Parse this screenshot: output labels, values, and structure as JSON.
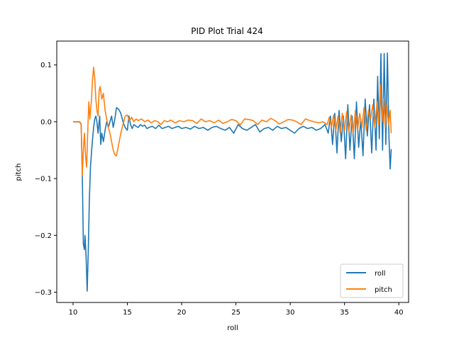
{
  "chart_data": {
    "type": "line",
    "title": "PID Plot Trial 424",
    "xlabel": "roll",
    "ylabel": "pitch",
    "xlim": [
      8.5,
      40.9
    ],
    "ylim": [
      -0.318,
      0.142
    ],
    "xticks": [
      10,
      15,
      20,
      25,
      30,
      35,
      40
    ],
    "yticks": [
      -0.3,
      -0.2,
      -0.1,
      0.0,
      0.1
    ],
    "xtick_labels": [
      "10",
      "15",
      "20",
      "25",
      "30",
      "35",
      "40"
    ],
    "ytick_labels": [
      "−0.3",
      "−0.2",
      "−0.1",
      "0.0",
      "0.1"
    ],
    "grid": false,
    "legend_position": "bottom-right",
    "series": [
      {
        "name": "roll",
        "color": "#1f77b4",
        "x": [
          10.0,
          10.3,
          10.6,
          10.75,
          10.85,
          10.95,
          11.05,
          11.1,
          11.2,
          11.3,
          11.4,
          11.5,
          11.6,
          11.75,
          11.9,
          12.0,
          12.1,
          12.2,
          12.3,
          12.45,
          12.55,
          12.65,
          12.8,
          12.95,
          13.1,
          13.25,
          13.4,
          13.55,
          13.7,
          13.85,
          14.0,
          14.2,
          14.4,
          14.6,
          14.8,
          15.0,
          15.15,
          15.3,
          15.45,
          15.6,
          15.8,
          16.0,
          16.2,
          16.4,
          16.6,
          16.8,
          17.0,
          17.3,
          17.6,
          17.9,
          18.2,
          18.5,
          18.8,
          19.1,
          19.4,
          19.7,
          20.0,
          20.4,
          20.8,
          21.2,
          21.6,
          22.0,
          22.4,
          22.8,
          23.2,
          23.6,
          24.0,
          24.4,
          24.8,
          25.2,
          25.6,
          26.0,
          26.4,
          26.8,
          27.2,
          27.6,
          28.0,
          28.4,
          28.8,
          29.2,
          29.6,
          30.0,
          30.4,
          30.8,
          31.2,
          31.6,
          32.0,
          32.4,
          32.8,
          33.2,
          33.5,
          33.7,
          33.9,
          34.1,
          34.3,
          34.5,
          34.7,
          34.9,
          35.1,
          35.3,
          35.5,
          35.7,
          35.9,
          36.1,
          36.3,
          36.5,
          36.7,
          36.9,
          37.1,
          37.3,
          37.5,
          37.7,
          37.9,
          38.05,
          38.2,
          38.35,
          38.5,
          38.65,
          38.8,
          38.95,
          39.1,
          39.2,
          39.3
        ],
        "y": [
          0.0,
          0.0,
          0.0,
          -0.004,
          -0.09,
          -0.215,
          -0.225,
          -0.2,
          -0.235,
          -0.298,
          -0.23,
          -0.14,
          -0.08,
          -0.04,
          -0.01,
          0.005,
          0.01,
          0.0,
          -0.02,
          0.01,
          -0.04,
          -0.02,
          -0.035,
          -0.015,
          0.0,
          -0.01,
          0.0,
          0.01,
          -0.01,
          0.005,
          0.025,
          0.022,
          0.015,
          0.0,
          -0.01,
          -0.015,
          0.01,
          -0.005,
          -0.012,
          -0.005,
          -0.008,
          -0.01,
          -0.005,
          -0.008,
          -0.006,
          -0.012,
          -0.01,
          -0.008,
          -0.012,
          -0.006,
          -0.012,
          -0.01,
          -0.008,
          -0.012,
          -0.01,
          -0.008,
          -0.012,
          -0.01,
          -0.013,
          -0.008,
          -0.012,
          -0.01,
          -0.015,
          -0.01,
          -0.008,
          -0.012,
          -0.015,
          -0.01,
          -0.02,
          -0.005,
          -0.012,
          -0.015,
          -0.01,
          -0.005,
          -0.018,
          -0.012,
          -0.01,
          -0.015,
          -0.008,
          -0.012,
          -0.01,
          -0.015,
          -0.02,
          -0.012,
          -0.008,
          -0.012,
          -0.01,
          -0.015,
          -0.012,
          -0.005,
          -0.02,
          0.01,
          -0.04,
          0.015,
          -0.055,
          0.02,
          -0.035,
          0.01,
          -0.065,
          0.03,
          -0.05,
          0.01,
          -0.065,
          0.035,
          -0.045,
          0.005,
          -0.06,
          0.04,
          -0.025,
          0.03,
          -0.055,
          0.04,
          -0.05,
          0.08,
          -0.03,
          0.12,
          -0.05,
          0.12,
          -0.04,
          0.121,
          -0.03,
          -0.083,
          -0.048
        ]
      },
      {
        "name": "pitch",
        "color": "#ff7f0e",
        "x": [
          10.0,
          10.3,
          10.6,
          10.75,
          10.85,
          10.95,
          11.05,
          11.15,
          11.25,
          11.35,
          11.45,
          11.55,
          11.7,
          11.8,
          11.9,
          12.0,
          12.1,
          12.2,
          12.3,
          12.4,
          12.5,
          12.65,
          12.8,
          12.95,
          13.1,
          13.25,
          13.4,
          13.55,
          13.7,
          13.85,
          14.0,
          14.2,
          14.4,
          14.6,
          14.8,
          15.0,
          15.2,
          15.4,
          15.6,
          15.8,
          16.0,
          16.3,
          16.6,
          16.9,
          17.2,
          17.5,
          17.8,
          18.1,
          18.4,
          18.7,
          19.0,
          19.4,
          19.8,
          20.2,
          20.6,
          21.0,
          21.4,
          21.8,
          22.2,
          22.6,
          23.0,
          23.4,
          23.8,
          24.2,
          24.6,
          25.0,
          25.4,
          25.8,
          26.2,
          26.6,
          27.0,
          27.4,
          27.8,
          28.2,
          28.6,
          29.0,
          29.4,
          29.8,
          30.2,
          30.6,
          31.0,
          31.4,
          31.8,
          32.2,
          32.6,
          33.0,
          33.4,
          33.6,
          33.8,
          34.0,
          34.2,
          34.4,
          34.6,
          34.8,
          35.0,
          35.2,
          35.4,
          35.6,
          35.8,
          36.0,
          36.2,
          36.4,
          36.6,
          36.8,
          37.0,
          37.2,
          37.4,
          37.6,
          37.8,
          38.0,
          38.15,
          38.3,
          38.45,
          38.6,
          38.75,
          38.9,
          39.05,
          39.2,
          39.3
        ],
        "y": [
          0.0,
          0.0,
          0.0,
          -0.005,
          -0.095,
          -0.05,
          -0.02,
          -0.06,
          -0.08,
          -0.02,
          0.035,
          0.005,
          0.04,
          0.075,
          0.096,
          0.075,
          0.04,
          0.02,
          0.01,
          0.055,
          0.062,
          0.04,
          0.05,
          0.02,
          0.005,
          -0.01,
          -0.02,
          -0.035,
          -0.05,
          -0.058,
          -0.06,
          -0.04,
          -0.02,
          -0.005,
          0.01,
          0.012,
          0.002,
          0.008,
          0.0,
          0.005,
          0.002,
          0.005,
          0.0,
          0.003,
          -0.002,
          0.002,
          0.0,
          -0.005,
          0.002,
          0.0,
          0.003,
          -0.002,
          0.002,
          0.0,
          0.003,
          0.002,
          -0.003,
          0.005,
          0.0,
          0.002,
          -0.002,
          0.003,
          -0.003,
          0.0,
          0.004,
          0.002,
          -0.006,
          0.005,
          0.004,
          0.002,
          -0.005,
          0.003,
          0.0,
          0.006,
          0.002,
          -0.004,
          0.0,
          0.004,
          0.003,
          0.0,
          -0.005,
          0.005,
          0.002,
          0.0,
          -0.002,
          0.0,
          -0.005,
          0.008,
          -0.01,
          0.012,
          -0.015,
          0.01,
          -0.02,
          0.015,
          -0.015,
          0.018,
          -0.018,
          0.012,
          -0.02,
          0.02,
          -0.015,
          0.015,
          -0.01,
          0.025,
          -0.015,
          0.02,
          0.005,
          0.03,
          -0.01,
          0.035,
          -0.005,
          0.065,
          0.0,
          0.04,
          -0.01,
          0.03,
          -0.005,
          0.02,
          -0.02
        ]
      }
    ]
  }
}
